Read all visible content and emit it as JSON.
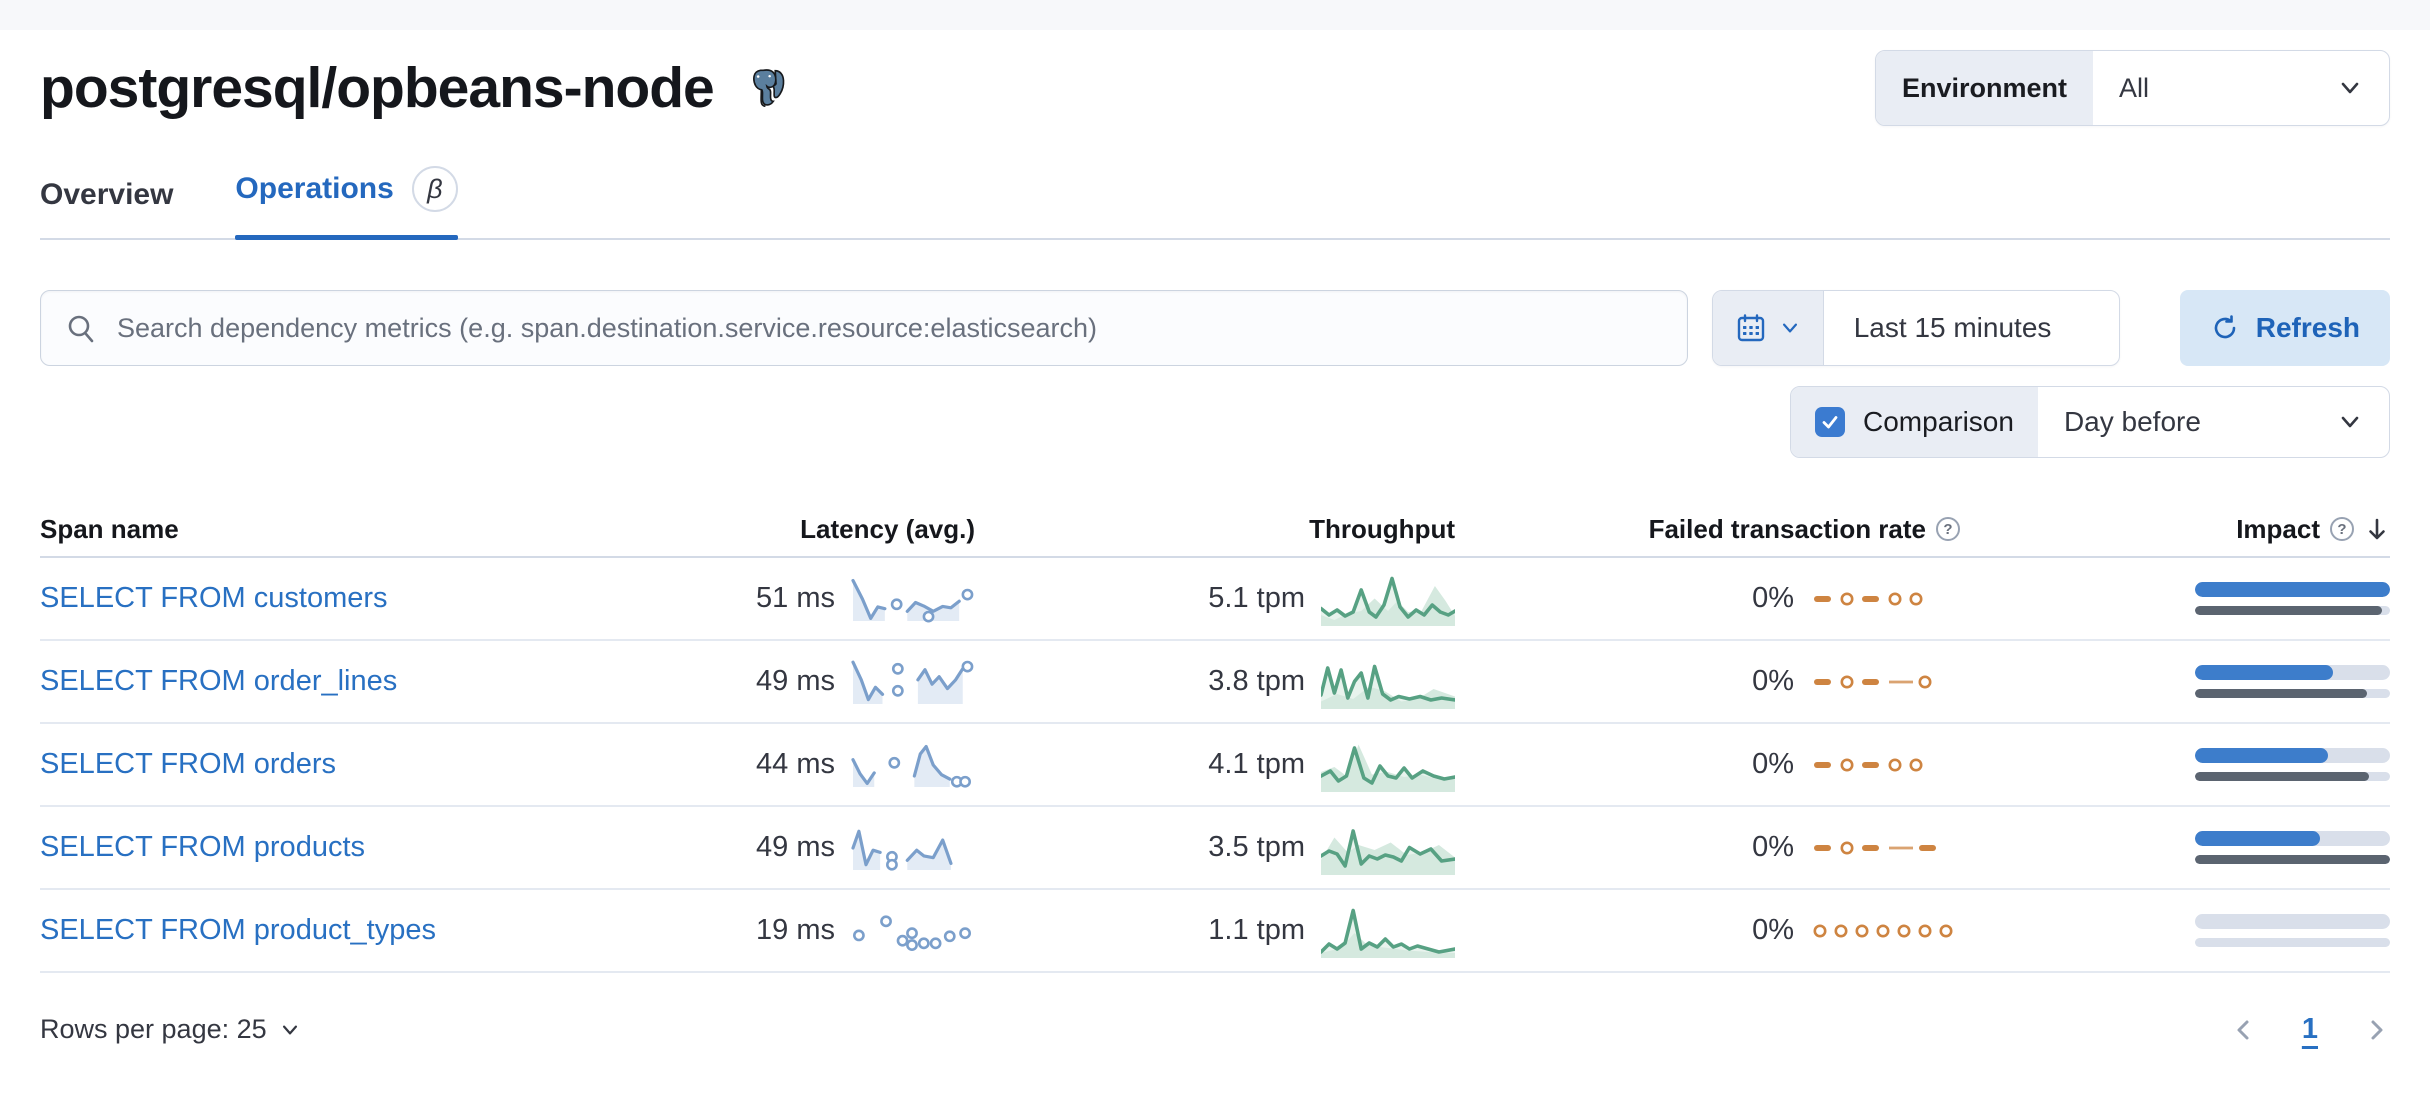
{
  "page": {
    "title": "postgresql/opbeans-node",
    "logo": "postgresql-elephant"
  },
  "environment": {
    "label": "Environment",
    "value": "All"
  },
  "tabs": [
    {
      "label": "Overview",
      "active": false
    },
    {
      "label": "Operations",
      "active": true,
      "badge": "β"
    }
  ],
  "controls": {
    "search_placeholder": "Search dependency metrics (e.g. span.destination.service.resource:elasticsearch)",
    "time_range": "Last 15 minutes",
    "refresh_label": "Refresh",
    "comparison_label": "Comparison",
    "comparison_checked": true,
    "comparison_value": "Day before"
  },
  "colors": {
    "primary_blue": "#2870c2",
    "latency_spark": "#7b9fcb",
    "latency_fill": "#e3ebf5",
    "throughput_spark": "#57a183",
    "throughput_fill": "#d5e9df",
    "failed_spark": "#ce8441",
    "impact_bar": "#3d7dcb",
    "impact_prev_bar": "#5b6470",
    "bar_track": "#d9dfea"
  },
  "table": {
    "columns": [
      {
        "label": "Span name"
      },
      {
        "label": "Latency (avg.)"
      },
      {
        "label": "Throughput"
      },
      {
        "label": "Failed transaction rate",
        "help_icon": "?"
      },
      {
        "label": "Impact",
        "help_icon": "?",
        "sorted": "desc"
      }
    ],
    "rows": [
      {
        "span_name": "SELECT FROM customers",
        "latency": "51 ms",
        "throughput": "5.1 tpm",
        "failed_rate": "0%",
        "impact_pct": 100,
        "impact_prev_pct": 96,
        "latency_spark": {
          "segments": [
            [
              [
                0,
                0.92
              ],
              [
                8,
                0.5
              ],
              [
                15,
                0.06
              ],
              [
                21,
                0.32
              ],
              [
                27,
                0.28
              ]
            ],
            [
              [
                46,
                0.22
              ],
              [
                53,
                0.42
              ],
              [
                60,
                0.34
              ],
              [
                68,
                0.22
              ],
              [
                76,
                0.33
              ],
              [
                83,
                0.3
              ],
              [
                90,
                0.45
              ]
            ]
          ],
          "dots": [
            [
              37,
              0.38
            ],
            [
              64,
              0.1
            ],
            [
              97,
              0.6
            ]
          ]
        },
        "throughput_spark": {
          "line": [
            [
              0,
              0.35
            ],
            [
              6,
              0.22
            ],
            [
              12,
              0.32
            ],
            [
              18,
              0.2
            ],
            [
              24,
              0.28
            ],
            [
              30,
              0.72
            ],
            [
              36,
              0.28
            ],
            [
              41,
              0.18
            ],
            [
              47,
              0.42
            ],
            [
              53,
              0.95
            ],
            [
              59,
              0.38
            ],
            [
              65,
              0.18
            ],
            [
              71,
              0.32
            ],
            [
              77,
              0.22
            ],
            [
              83,
              0.42
            ],
            [
              89,
              0.28
            ],
            [
              95,
              0.22
            ],
            [
              100,
              0.3
            ]
          ],
          "comp": [
            [
              0,
              0.22
            ],
            [
              10,
              0.12
            ],
            [
              20,
              0.25
            ],
            [
              30,
              0.3
            ],
            [
              40,
              0.55
            ],
            [
              50,
              0.3
            ],
            [
              57,
              0.5
            ],
            [
              65,
              0.28
            ],
            [
              75,
              0.3
            ],
            [
              85,
              0.8
            ],
            [
              93,
              0.5
            ],
            [
              100,
              0.2
            ]
          ]
        },
        "failed_spark": [
          "dash",
          "dot",
          "dash",
          "dot",
          "dot"
        ]
      },
      {
        "span_name": "SELECT FROM order_lines",
        "latency": "49 ms",
        "throughput": "3.8 tpm",
        "failed_rate": "0%",
        "impact_pct": 71,
        "impact_prev_pct": 88,
        "latency_spark": {
          "segments": [
            [
              [
                0,
                0.95
              ],
              [
                7,
                0.55
              ],
              [
                13,
                0.1
              ],
              [
                19,
                0.38
              ],
              [
                25,
                0.22
              ]
            ],
            [
              [
                55,
                0.55
              ],
              [
                61,
                0.78
              ],
              [
                67,
                0.45
              ],
              [
                73,
                0.62
              ],
              [
                80,
                0.35
              ],
              [
                87,
                0.55
              ],
              [
                93,
                0.8
              ]
            ]
          ],
          "dots": [
            [
              38,
              0.8
            ],
            [
              38,
              0.3
            ],
            [
              97,
              0.85
            ]
          ]
        },
        "throughput_spark": {
          "line": [
            [
              0,
              0.28
            ],
            [
              5,
              0.82
            ],
            [
              10,
              0.32
            ],
            [
              15,
              0.78
            ],
            [
              20,
              0.22
            ],
            [
              25,
              0.55
            ],
            [
              30,
              0.72
            ],
            [
              35,
              0.22
            ],
            [
              40,
              0.85
            ],
            [
              46,
              0.3
            ],
            [
              52,
              0.18
            ],
            [
              58,
              0.25
            ],
            [
              66,
              0.2
            ],
            [
              74,
              0.25
            ],
            [
              82,
              0.18
            ],
            [
              90,
              0.22
            ],
            [
              100,
              0.18
            ]
          ],
          "comp": [
            [
              0,
              0.15
            ],
            [
              12,
              0.3
            ],
            [
              24,
              0.2
            ],
            [
              36,
              0.45
            ],
            [
              48,
              0.35
            ],
            [
              60,
              0.15
            ],
            [
              72,
              0.2
            ],
            [
              84,
              0.4
            ],
            [
              100,
              0.25
            ]
          ]
        },
        "failed_spark": [
          "dash",
          "dot",
          "dash",
          "line",
          "dot"
        ]
      },
      {
        "span_name": "SELECT FROM orders",
        "latency": "44 ms",
        "throughput": "4.1 tpm",
        "failed_rate": "0%",
        "impact_pct": 68,
        "impact_prev_pct": 89,
        "latency_spark": {
          "segments": [
            [
              [
                0,
                0.62
              ],
              [
                6,
                0.3
              ],
              [
                12,
                0.08
              ],
              [
                18,
                0.32
              ]
            ],
            [
              [
                52,
                0.25
              ],
              [
                57,
                0.75
              ],
              [
                62,
                0.92
              ],
              [
                68,
                0.5
              ],
              [
                75,
                0.28
              ],
              [
                82,
                0.18
              ]
            ]
          ],
          "dots": [
            [
              35,
              0.55
            ],
            [
              88,
              0.12
            ],
            [
              95,
              0.12
            ]
          ]
        },
        "throughput_spark": {
          "line": [
            [
              0,
              0.32
            ],
            [
              7,
              0.42
            ],
            [
              13,
              0.22
            ],
            [
              19,
              0.32
            ],
            [
              25,
              0.88
            ],
            [
              32,
              0.28
            ],
            [
              38,
              0.18
            ],
            [
              44,
              0.52
            ],
            [
              50,
              0.32
            ],
            [
              56,
              0.28
            ],
            [
              62,
              0.48
            ],
            [
              68,
              0.28
            ],
            [
              76,
              0.42
            ],
            [
              84,
              0.32
            ],
            [
              92,
              0.26
            ],
            [
              100,
              0.3
            ]
          ],
          "comp": [
            [
              0,
              0.4
            ],
            [
              10,
              0.5
            ],
            [
              20,
              0.3
            ],
            [
              28,
              0.95
            ],
            [
              38,
              0.35
            ],
            [
              50,
              0.4
            ],
            [
              62,
              0.3
            ],
            [
              74,
              0.35
            ],
            [
              88,
              0.25
            ],
            [
              100,
              0.3
            ]
          ]
        },
        "failed_spark": [
          "dash",
          "dot",
          "dash",
          "dot",
          "dot"
        ]
      },
      {
        "span_name": "SELECT FROM products",
        "latency": "49 ms",
        "throughput": "3.5 tpm",
        "failed_rate": "0%",
        "impact_pct": 64,
        "impact_prev_pct": 100,
        "latency_spark": {
          "segments": [
            [
              [
                0,
                0.5
              ],
              [
                5,
                0.88
              ],
              [
                11,
                0.12
              ],
              [
                17,
                0.45
              ],
              [
                23,
                0.4
              ]
            ],
            [
              [
                46,
                0.22
              ],
              [
                54,
                0.45
              ],
              [
                60,
                0.32
              ],
              [
                68,
                0.28
              ],
              [
                76,
                0.68
              ],
              [
                83,
                0.15
              ]
            ]
          ],
          "dots": [
            [
              33,
              0.3
            ],
            [
              33,
              0.12
            ]
          ]
        },
        "throughput_spark": {
          "line": [
            [
              0,
              0.38
            ],
            [
              6,
              0.48
            ],
            [
              12,
              0.42
            ],
            [
              18,
              0.18
            ],
            [
              24,
              0.88
            ],
            [
              30,
              0.22
            ],
            [
              36,
              0.38
            ],
            [
              42,
              0.32
            ],
            [
              48,
              0.4
            ],
            [
              54,
              0.36
            ],
            [
              60,
              0.28
            ],
            [
              66,
              0.55
            ],
            [
              74,
              0.42
            ],
            [
              82,
              0.52
            ],
            [
              90,
              0.28
            ],
            [
              100,
              0.32
            ]
          ],
          "comp": [
            [
              0,
              0.3
            ],
            [
              10,
              0.75
            ],
            [
              20,
              0.45
            ],
            [
              28,
              0.6
            ],
            [
              40,
              0.5
            ],
            [
              52,
              0.65
            ],
            [
              64,
              0.4
            ],
            [
              76,
              0.45
            ],
            [
              88,
              0.6
            ],
            [
              100,
              0.35
            ]
          ]
        },
        "failed_spark": [
          "dash",
          "dot",
          "dash",
          "line",
          "dash"
        ]
      },
      {
        "span_name": "SELECT FROM product_types",
        "latency": "19 ms",
        "throughput": "1.1 tpm",
        "failed_rate": "0%",
        "impact_pct": 0,
        "impact_prev_pct": 0,
        "latency_spark": {
          "segments": [],
          "dots": [
            [
              5,
              0.4
            ],
            [
              28,
              0.72
            ],
            [
              42,
              0.28
            ],
            [
              50,
              0.45
            ],
            [
              50,
              0.18
            ],
            [
              60,
              0.22
            ],
            [
              70,
              0.22
            ],
            [
              82,
              0.38
            ],
            [
              95,
              0.45
            ]
          ]
        },
        "throughput_spark": {
          "line": [
            [
              0,
              0.12
            ],
            [
              6,
              0.28
            ],
            [
              12,
              0.18
            ],
            [
              18,
              0.3
            ],
            [
              24,
              0.95
            ],
            [
              30,
              0.18
            ],
            [
              36,
              0.3
            ],
            [
              42,
              0.22
            ],
            [
              48,
              0.38
            ],
            [
              54,
              0.22
            ],
            [
              60,
              0.28
            ],
            [
              66,
              0.18
            ],
            [
              72,
              0.24
            ],
            [
              80,
              0.18
            ],
            [
              88,
              0.12
            ],
            [
              100,
              0.18
            ]
          ],
          "comp": [
            [
              0,
              0.1
            ],
            [
              15,
              0.2
            ],
            [
              25,
              0.5
            ],
            [
              35,
              0.25
            ],
            [
              50,
              0.2
            ],
            [
              65,
              0.15
            ],
            [
              80,
              0.12
            ],
            [
              100,
              0.1
            ]
          ]
        },
        "failed_spark": [
          "dot",
          "dot",
          "dot",
          "dot",
          "dot",
          "dot",
          "dot"
        ]
      }
    ]
  },
  "footer": {
    "rows_per_page": "Rows per page: 25",
    "page": "1"
  }
}
